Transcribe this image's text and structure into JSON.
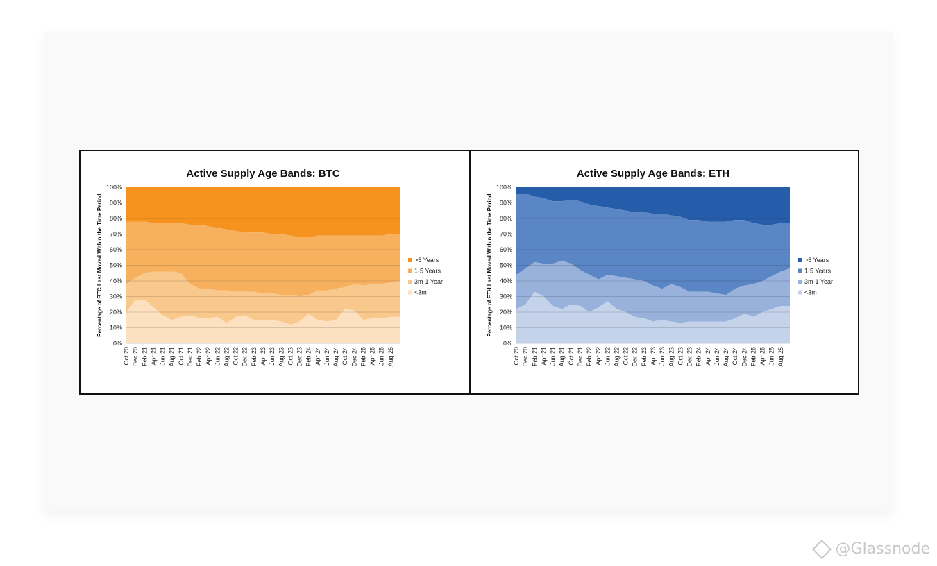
{
  "watermark": {
    "handle": "@Glassnode",
    "icon": "diamond-logo-icon"
  },
  "chart_data": [
    {
      "type": "area",
      "stacked": true,
      "title": "Active Supply Age Bands: BTC",
      "ylabel": "Percentage of BTC Last Moved Within the Time Period",
      "ylim": [
        0,
        100
      ],
      "grid": true,
      "legend_position": "right",
      "x_ticks": [
        "Oct 20",
        "Dec 20",
        "Feb 21",
        "Apr 21",
        "Jun 21",
        "Aug 21",
        "Oct 21",
        "Dec 21",
        "Feb 22",
        "Apr 22",
        "Jun 22",
        "Aug 22",
        "Oct 22",
        "Dec 22",
        "Feb 23",
        "Apr 23",
        "Jun 23",
        "Aug 23",
        "Oct 23",
        "Dec 23",
        "Feb 24",
        "Apr 24",
        "Jun 24",
        "Aug 24",
        "Oct 24",
        "Dec 24",
        "Feb 25",
        "Apr 25",
        "Jun 25",
        "Aug 25"
      ],
      "y_ticks": [
        "0%",
        "10%",
        "20%",
        "30%",
        "40%",
        "50%",
        "60%",
        "70%",
        "80%",
        "90%",
        "100%"
      ],
      "x": [
        "2020-10",
        "2020-12",
        "2021-02",
        "2021-04",
        "2021-06",
        "2021-08",
        "2021-10",
        "2021-12",
        "2022-02",
        "2022-04",
        "2022-06",
        "2022-08",
        "2022-10",
        "2022-12",
        "2023-02",
        "2023-04",
        "2023-06",
        "2023-08",
        "2023-10",
        "2023-12",
        "2024-02",
        "2024-04",
        "2024-06",
        "2024-08",
        "2024-10",
        "2024-12",
        "2025-02",
        "2025-04",
        "2025-06",
        "2025-08",
        "2025-10"
      ],
      "series": [
        {
          "name": "<3m",
          "color": "#fce0c0",
          "values": [
            20,
            28,
            28,
            23,
            18,
            15,
            17,
            18,
            16,
            16,
            17,
            13,
            17,
            18,
            15,
            15,
            15,
            14,
            12,
            14,
            19,
            15,
            14,
            15,
            22,
            21,
            15,
            16,
            16,
            17,
            17
          ]
        },
        {
          "name": "3m-1 Year",
          "color": "#f9c88c",
          "values": [
            38,
            42,
            45,
            46,
            46,
            46,
            45,
            38,
            35,
            35,
            34,
            34,
            33,
            33,
            33,
            32,
            32,
            31,
            31,
            30,
            31,
            34,
            34,
            35,
            36,
            38,
            37,
            38,
            38,
            39,
            40
          ]
        },
        {
          "name": "1-5 Years",
          "color": "#f7b15e",
          "values": [
            78,
            78,
            78,
            77,
            77,
            77,
            77,
            76,
            76,
            75,
            74,
            73,
            72,
            71,
            71,
            71,
            70,
            70,
            69,
            68,
            68,
            69,
            69,
            69,
            69,
            69,
            69,
            69,
            69,
            70,
            70
          ]
        },
        {
          "name": ">5 Years",
          "color": "#f5931e",
          "values": [
            100,
            100,
            100,
            100,
            100,
            100,
            100,
            100,
            100,
            100,
            100,
            100,
            100,
            100,
            100,
            100,
            100,
            100,
            100,
            100,
            100,
            100,
            100,
            100,
            100,
            100,
            100,
            100,
            100,
            100,
            100
          ]
        }
      ]
    },
    {
      "type": "area",
      "stacked": true,
      "title": "Active Supply Age Bands: ETH",
      "ylabel": "Percentage of ETH Last Moved Within the Time Period",
      "ylim": [
        0,
        100
      ],
      "grid": true,
      "legend_position": "right",
      "x_ticks": [
        "Oct 20",
        "Dec 20",
        "Feb 21",
        "Apr 21",
        "Jun 21",
        "Aug 21",
        "Oct 21",
        "Dec 21",
        "Feb 22",
        "Apr 22",
        "Jun 22",
        "Aug 22",
        "Oct 22",
        "Dec 22",
        "Feb 23",
        "Apr 23",
        "Jun 23",
        "Aug 23",
        "Oct 23",
        "Dec 23",
        "Feb 24",
        "Apr 24",
        "Jun 24",
        "Aug 24",
        "Oct 24",
        "Dec 24",
        "Feb 25",
        "Apr 25",
        "Jun 25",
        "Aug 25"
      ],
      "y_ticks": [
        "0%",
        "10%",
        "20%",
        "30%",
        "40%",
        "50%",
        "60%",
        "70%",
        "80%",
        "90%",
        "100%"
      ],
      "x": [
        "2020-10",
        "2020-12",
        "2021-02",
        "2021-04",
        "2021-06",
        "2021-08",
        "2021-10",
        "2021-12",
        "2022-02",
        "2022-04",
        "2022-06",
        "2022-08",
        "2022-10",
        "2022-12",
        "2023-02",
        "2023-04",
        "2023-06",
        "2023-08",
        "2023-10",
        "2023-12",
        "2024-02",
        "2024-04",
        "2024-06",
        "2024-08",
        "2024-10",
        "2024-12",
        "2025-02",
        "2025-04",
        "2025-06",
        "2025-08",
        "2025-10"
      ],
      "series": [
        {
          "name": "<3m",
          "color": "#c5d3ea",
          "values": [
            22,
            25,
            33,
            30,
            24,
            22,
            25,
            24,
            20,
            23,
            27,
            22,
            20,
            17,
            16,
            14,
            15,
            14,
            13,
            14,
            14,
            14,
            14,
            14,
            16,
            19,
            17,
            20,
            22,
            24,
            24
          ]
        },
        {
          "name": "3m-1 Year",
          "color": "#98b2db",
          "values": [
            44,
            48,
            52,
            51,
            51,
            53,
            51,
            47,
            44,
            41,
            44,
            43,
            42,
            41,
            40,
            37,
            35,
            38,
            36,
            33,
            33,
            33,
            32,
            31,
            35,
            37,
            38,
            40,
            43,
            46,
            48
          ]
        },
        {
          "name": "1-5 Years",
          "color": "#5a86c5",
          "values": [
            96,
            96,
            94,
            93,
            91,
            91,
            92,
            91,
            89,
            88,
            87,
            86,
            85,
            84,
            84,
            83,
            83,
            82,
            81,
            79,
            79,
            78,
            78,
            78,
            79,
            79,
            77,
            76,
            76,
            77,
            77
          ]
        },
        {
          "name": ">5 Years",
          "color": "#265daa",
          "values": [
            100,
            100,
            100,
            100,
            100,
            100,
            100,
            100,
            100,
            100,
            100,
            100,
            100,
            100,
            100,
            100,
            100,
            100,
            100,
            100,
            100,
            100,
            100,
            100,
            100,
            100,
            100,
            100,
            100,
            100,
            100
          ]
        }
      ]
    }
  ]
}
